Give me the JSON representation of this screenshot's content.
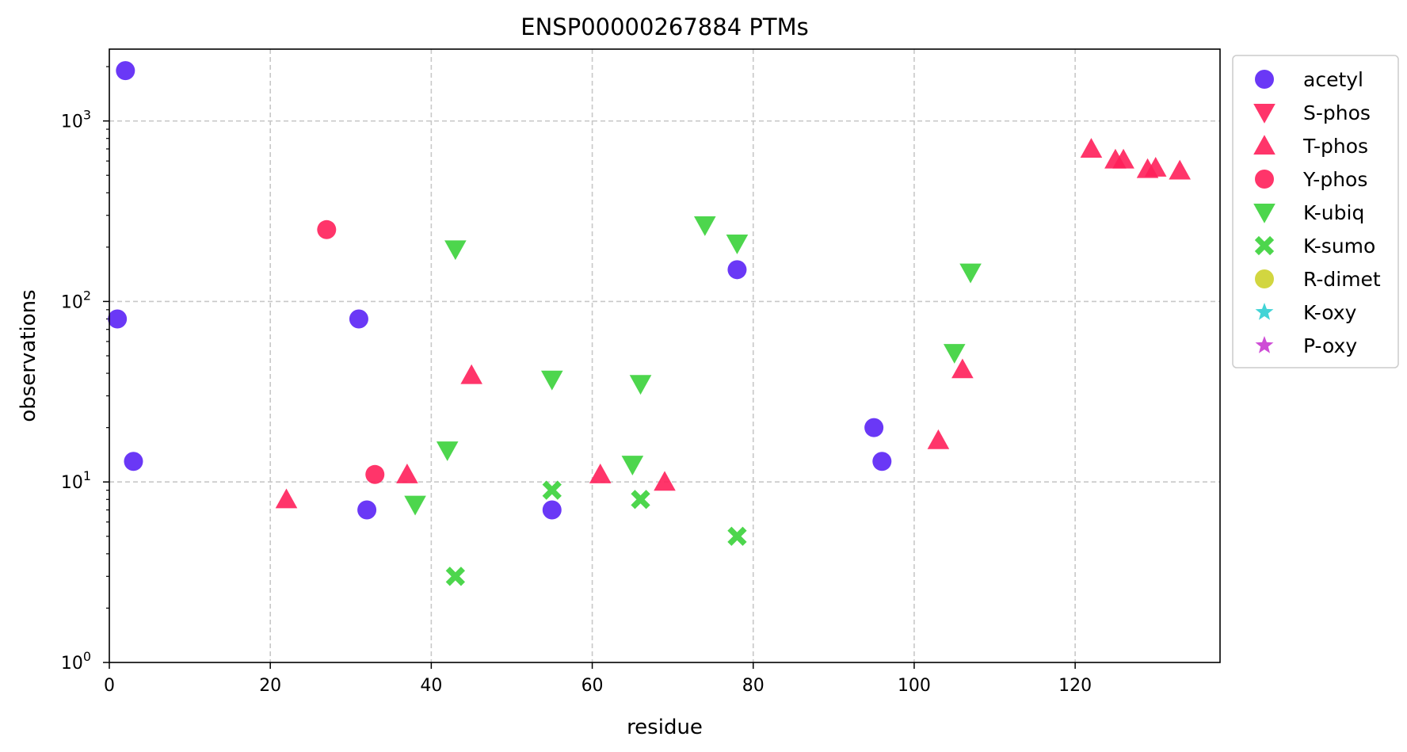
{
  "chart_data": {
    "type": "scatter",
    "title": "ENSP00000267884 PTMs",
    "xlabel": "residue",
    "ylabel": "observations",
    "xlim": [
      0,
      138
    ],
    "ylim": [
      1,
      2500
    ],
    "y_scale": "log",
    "x_ticks": [
      0,
      20,
      40,
      60,
      80,
      100,
      120
    ],
    "y_ticks": [
      {
        "value": 1,
        "base": "10",
        "exp": "0"
      },
      {
        "value": 10,
        "base": "10",
        "exp": "1"
      },
      {
        "value": 100,
        "base": "10",
        "exp": "2"
      },
      {
        "value": 1000,
        "base": "10",
        "exp": "3"
      }
    ],
    "grid": true,
    "legend_position": "outside-right",
    "series": [
      {
        "name": "acetyl",
        "marker": "circle",
        "color": "#5a22f5",
        "points": [
          [
            2,
            1900
          ],
          [
            1,
            80
          ],
          [
            3,
            13
          ],
          [
            31,
            80
          ],
          [
            32,
            7
          ],
          [
            55,
            7
          ],
          [
            78,
            150
          ],
          [
            95,
            20
          ],
          [
            96,
            13
          ]
        ]
      },
      {
        "name": "S-phos",
        "marker": "triangle-down",
        "color": "#ff1f5a",
        "points": []
      },
      {
        "name": "T-phos",
        "marker": "triangle-up",
        "color": "#ff1f5a",
        "points": [
          [
            22,
            8
          ],
          [
            37,
            11
          ],
          [
            45,
            39
          ],
          [
            61,
            11
          ],
          [
            69,
            10
          ],
          [
            103,
            17
          ],
          [
            106,
            42
          ],
          [
            122,
            700
          ],
          [
            125,
            610
          ],
          [
            126,
            610
          ],
          [
            129,
            540
          ],
          [
            130,
            550
          ],
          [
            133,
            530
          ]
        ]
      },
      {
        "name": "Y-phos",
        "marker": "circle",
        "color": "#ff1f5a",
        "points": [
          [
            27,
            250
          ],
          [
            33,
            11
          ]
        ]
      },
      {
        "name": "K-ubiq",
        "marker": "triangle-down",
        "color": "#3ad13a",
        "points": [
          [
            38,
            7.5
          ],
          [
            42,
            15
          ],
          [
            43,
            195
          ],
          [
            55,
            37
          ],
          [
            65,
            12.5
          ],
          [
            66,
            35
          ],
          [
            74,
            265
          ],
          [
            78,
            210
          ],
          [
            105,
            52
          ],
          [
            107,
            145
          ]
        ]
      },
      {
        "name": "K-sumo",
        "marker": "x",
        "color": "#3ad13a",
        "points": [
          [
            43,
            3
          ],
          [
            55,
            9
          ],
          [
            66,
            8
          ],
          [
            78,
            5
          ]
        ]
      },
      {
        "name": "R-dimet",
        "marker": "circle",
        "color": "#cdd12b",
        "points": []
      },
      {
        "name": "K-oxy",
        "marker": "star",
        "color": "#2ecfd1",
        "points": []
      },
      {
        "name": "P-oxy",
        "marker": "star",
        "color": "#c93ad1",
        "points": []
      }
    ]
  }
}
